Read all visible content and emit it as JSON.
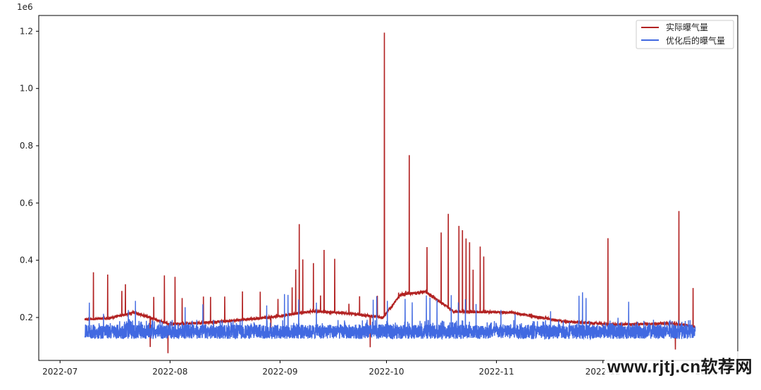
{
  "chart_data": {
    "type": "line",
    "scale_label": "1e6",
    "x_tick_labels": [
      "2022-07",
      "2022-08",
      "2022-09",
      "2022-10",
      "2022-11",
      "2022-12",
      "2023-01"
    ],
    "y_tick_labels": [
      "0.2",
      "0.4",
      "0.6",
      "0.8",
      "1.0",
      "1.2"
    ],
    "x_tick_values": [
      "2022-07-01",
      "2022-08-01",
      "2022-09-01",
      "2022-10-01",
      "2022-11-01",
      "2022-12-01",
      "2023-01-01"
    ],
    "y_tick_values": [
      200000,
      400000,
      600000,
      800000,
      1000000,
      1200000
    ],
    "xlim": [
      "2022-06-25",
      "2023-01-08"
    ],
    "ylim": [
      50000,
      1255000
    ],
    "legend_position": "top-right",
    "grid": false,
    "series": [
      {
        "name": "实际曝气量",
        "color": "#b22222",
        "baseline": [
          [
            "2022-07-08",
            193000
          ],
          [
            "2022-07-15",
            198000
          ],
          [
            "2022-07-22",
            218000
          ],
          [
            "2022-08-01",
            176000
          ],
          [
            "2022-08-15",
            185000
          ],
          [
            "2022-08-25",
            196000
          ],
          [
            "2022-09-01",
            205000
          ],
          [
            "2022-09-10",
            222000
          ],
          [
            "2022-09-20",
            215000
          ],
          [
            "2022-09-30",
            200000
          ],
          [
            "2022-10-05",
            280000
          ],
          [
            "2022-10-12",
            290000
          ],
          [
            "2022-10-20",
            220000
          ],
          [
            "2022-11-05",
            218000
          ],
          [
            "2022-11-20",
            186000
          ],
          [
            "2022-12-05",
            175000
          ],
          [
            "2022-12-20",
            180000
          ],
          [
            "2022-12-27",
            168000
          ]
        ],
        "spikes": [
          [
            "2022-07-10",
            358000
          ],
          [
            "2022-07-14",
            350000
          ],
          [
            "2022-07-18",
            293000
          ],
          [
            "2022-07-19",
            316000
          ],
          [
            "2022-07-26",
            97000
          ],
          [
            "2022-07-27",
            272000
          ],
          [
            "2022-07-30",
            347000
          ],
          [
            "2022-07-31",
            75000
          ],
          [
            "2022-08-02",
            342000
          ],
          [
            "2022-08-04",
            268000
          ],
          [
            "2022-08-10",
            273000
          ],
          [
            "2022-08-12",
            272000
          ],
          [
            "2022-08-16",
            273000
          ],
          [
            "2022-08-21",
            291000
          ],
          [
            "2022-08-26",
            290000
          ],
          [
            "2022-08-29",
            163000
          ],
          [
            "2022-08-31",
            265000
          ],
          [
            "2022-09-04",
            305000
          ],
          [
            "2022-09-05",
            368000
          ],
          [
            "2022-09-06",
            526000
          ],
          [
            "2022-09-07",
            403000
          ],
          [
            "2022-09-10",
            390000
          ],
          [
            "2022-09-12",
            277000
          ],
          [
            "2022-09-13",
            436000
          ],
          [
            "2022-09-16",
            405000
          ],
          [
            "2022-09-20",
            248000
          ],
          [
            "2022-09-23",
            274000
          ],
          [
            "2022-09-26",
            96000
          ],
          [
            "2022-09-28",
            276000
          ],
          [
            "2022-09-30",
            1195000
          ],
          [
            "2022-10-04",
            287000
          ],
          [
            "2022-10-06",
            293000
          ],
          [
            "2022-10-07",
            767000
          ],
          [
            "2022-10-09",
            279000
          ],
          [
            "2022-10-12",
            446000
          ],
          [
            "2022-10-16",
            497000
          ],
          [
            "2022-10-18",
            562000
          ],
          [
            "2022-10-21",
            520000
          ],
          [
            "2022-10-22",
            505000
          ],
          [
            "2022-10-23",
            476000
          ],
          [
            "2022-10-24",
            463000
          ],
          [
            "2022-10-25",
            367000
          ],
          [
            "2022-10-27",
            448000
          ],
          [
            "2022-10-28",
            413000
          ],
          [
            "2022-12-02",
            477000
          ],
          [
            "2022-12-21",
            88000
          ],
          [
            "2022-12-22",
            572000
          ],
          [
            "2022-12-26",
            303000
          ]
        ]
      },
      {
        "name": "优化后的曝气量",
        "color": "#4169e1",
        "noise_range": [
          125000,
          192000
        ],
        "spikes": [
          [
            "2022-07-09",
            252000
          ],
          [
            "2022-07-13",
            213000
          ],
          [
            "2022-07-20",
            226000
          ],
          [
            "2022-07-22",
            258000
          ],
          [
            "2022-08-05",
            236000
          ],
          [
            "2022-08-10",
            246000
          ],
          [
            "2022-08-28",
            242000
          ],
          [
            "2022-09-02",
            282000
          ],
          [
            "2022-09-03",
            279000
          ],
          [
            "2022-09-06",
            263000
          ],
          [
            "2022-09-11",
            252000
          ],
          [
            "2022-09-27",
            262000
          ],
          [
            "2022-09-28",
            274000
          ],
          [
            "2022-10-01",
            258000
          ],
          [
            "2022-10-06",
            265000
          ],
          [
            "2022-10-08",
            253000
          ],
          [
            "2022-10-12",
            277000
          ],
          [
            "2022-10-13",
            269000
          ],
          [
            "2022-10-15",
            262000
          ],
          [
            "2022-10-19",
            278000
          ],
          [
            "2022-10-21",
            253000
          ],
          [
            "2022-10-23",
            264000
          ],
          [
            "2022-10-26",
            247000
          ],
          [
            "2022-11-02",
            226000
          ],
          [
            "2022-11-06",
            212000
          ],
          [
            "2022-11-16",
            222000
          ],
          [
            "2022-11-24",
            276000
          ],
          [
            "2022-11-25",
            288000
          ],
          [
            "2022-11-26",
            268000
          ],
          [
            "2022-12-05",
            199000
          ],
          [
            "2022-12-08",
            255000
          ],
          [
            "2022-12-15",
            192000
          ],
          [
            "2022-12-23",
            185000
          ]
        ]
      }
    ]
  },
  "watermark": "www.rjtj.cn软荐网"
}
